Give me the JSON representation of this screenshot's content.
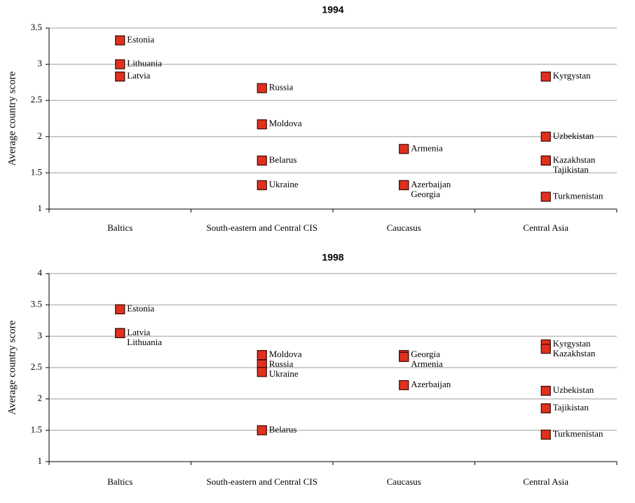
{
  "chart_data": [
    {
      "type": "dot",
      "title": "1994",
      "y_label": "Average country score",
      "ylim": [
        1,
        3.5
      ],
      "yticks": [
        1,
        1.5,
        2,
        2.5,
        3,
        3.5
      ],
      "grid": true,
      "color": "#e0301e",
      "groups": [
        {
          "category": "Baltics",
          "names": [
            "Estonia",
            "Lithuania",
            "Latvia"
          ],
          "values": [
            3.33,
            3.0,
            2.83
          ]
        },
        {
          "category": "South-eastern and Central CIS",
          "names": [
            "Russia",
            "Moldova",
            "Belarus",
            "Ukraine"
          ],
          "values": [
            2.67,
            2.17,
            1.67,
            1.33
          ]
        },
        {
          "category": "Caucasus",
          "names": [
            "Armenia",
            "Azerbaijan",
            "Georgia"
          ],
          "values": [
            1.83,
            1.33,
            1.33
          ]
        },
        {
          "category": "Central Asia",
          "names": [
            "Kyrgystan",
            "Uzbekistan",
            "Kazakhstan",
            "Tajikistan",
            "Turkmenistan"
          ],
          "values": [
            2.83,
            2.0,
            1.67,
            1.67,
            1.17
          ]
        }
      ]
    },
    {
      "type": "dot",
      "title": "1998",
      "y_label": "Average country score",
      "ylim": [
        1,
        4
      ],
      "yticks": [
        1,
        1.5,
        2,
        2.5,
        3,
        3.5,
        4
      ],
      "grid": true,
      "color": "#e0301e",
      "groups": [
        {
          "category": "Baltics",
          "names": [
            "Estonia",
            "Latvia",
            "Lithuania"
          ],
          "values": [
            3.43,
            3.05,
            3.05
          ]
        },
        {
          "category": "South-eastern and Central CIS",
          "names": [
            "Moldova",
            "Russia",
            "Ukraine",
            "Belarus"
          ],
          "values": [
            2.7,
            2.55,
            2.43,
            1.5
          ]
        },
        {
          "category": "Caucasus",
          "names": [
            "Georgia",
            "Armenia",
            "Azerbaijan"
          ],
          "values": [
            2.7,
            2.67,
            2.22
          ]
        },
        {
          "category": "Central Asia",
          "names": [
            "Kyrgystan",
            "Kazakhstan",
            "Uzbekistan",
            "Tajikistan",
            "Turkmenistan"
          ],
          "values": [
            2.87,
            2.8,
            2.13,
            1.85,
            1.43
          ]
        }
      ]
    }
  ]
}
